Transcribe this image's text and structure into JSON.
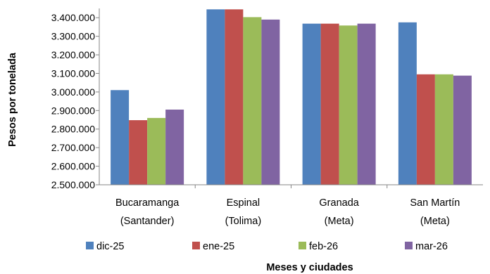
{
  "chart_data": {
    "type": "bar",
    "title": "",
    "xlabel": "Meses y ciudades",
    "ylabel": "Pesos por tonelada",
    "ylim": [
      2500000,
      3450000
    ],
    "yticks": [
      2500000,
      2600000,
      2700000,
      2800000,
      2900000,
      3000000,
      3100000,
      3200000,
      3300000,
      3400000
    ],
    "ytick_labels": [
      "2.500.000",
      "2.600.000",
      "2.700.000",
      "2.800.000",
      "2.900.000",
      "3.000.000",
      "3.100.000",
      "3.200.000",
      "3.300.000",
      "3.400.000"
    ],
    "categories": [
      [
        "Bucaramanga",
        "(Santander)"
      ],
      [
        "Espinal",
        "(Tolima)"
      ],
      [
        "Granada",
        "(Meta)"
      ],
      [
        "San Martín",
        "(Meta)"
      ]
    ],
    "series": [
      {
        "name": "dic-25",
        "color": "#4F81BD",
        "values": [
          3010000,
          3445000,
          3368000,
          3375000
        ]
      },
      {
        "name": "ene-25",
        "color": "#C0504D",
        "values": [
          2848000,
          3445000,
          3368000,
          3095000
        ]
      },
      {
        "name": "feb-26",
        "color": "#9BBB59",
        "values": [
          2860000,
          3403000,
          3358000,
          3095000
        ]
      },
      {
        "name": "mar-26",
        "color": "#8064A2",
        "values": [
          2905000,
          3390000,
          3368000,
          3088000
        ]
      }
    ],
    "grid": "none",
    "legend_position": "bottom"
  }
}
